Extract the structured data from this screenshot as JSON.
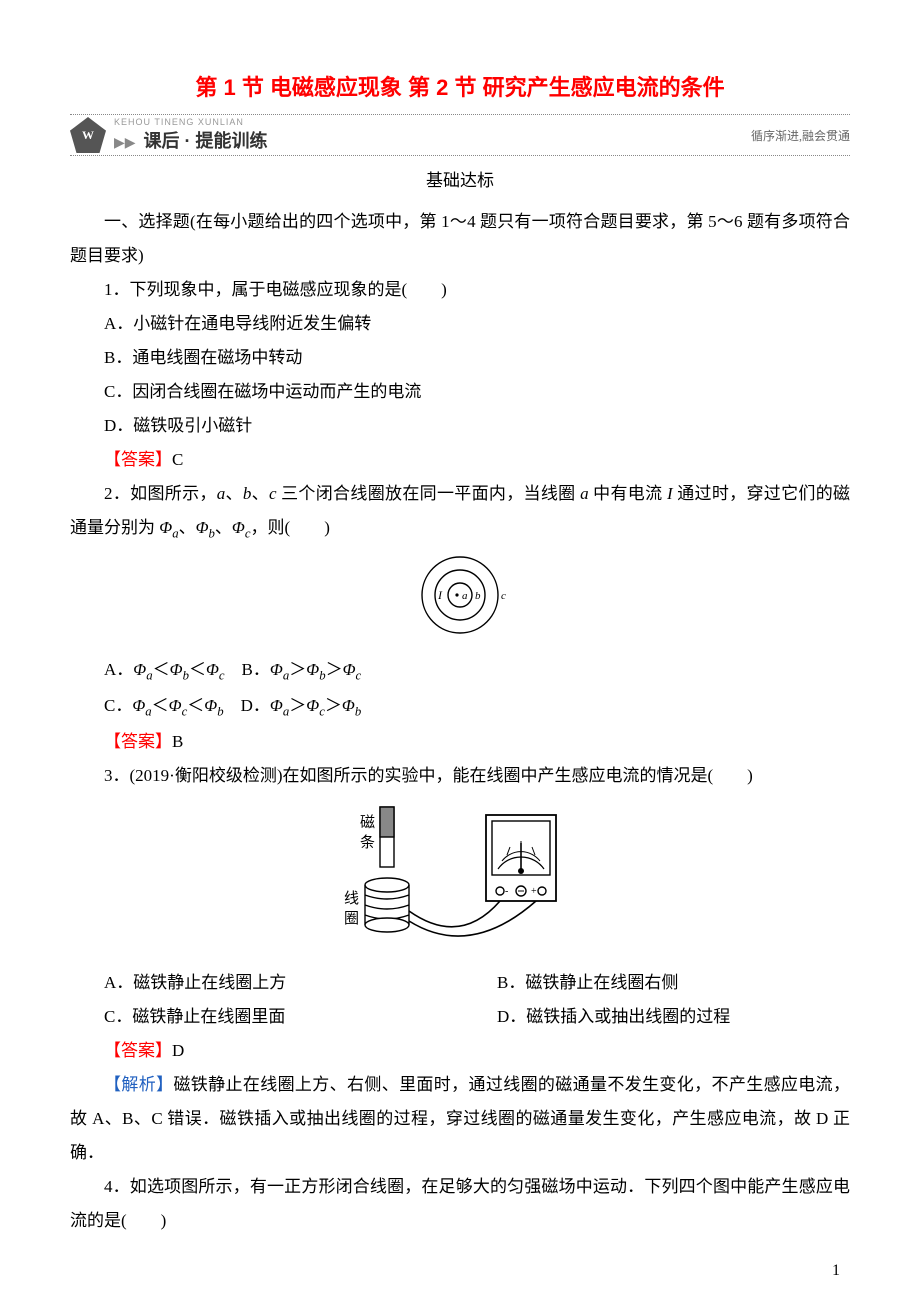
{
  "title": "第 1 节  电磁感应现象  第 2 节  研究产生感应电流的条件",
  "banner": {
    "logoText": "W",
    "pinyin": "KEHOU TINENG XUNLIAN",
    "arrows": "▶▶",
    "main": "课后 · 提能训练",
    "sub": "循序渐进,融会贯通"
  },
  "sectionHeading": "基础达标",
  "intro": "一、选择题(在每小题给出的四个选项中，第 1～4 题只有一项符合题目要求，第 5～6 题有多项符合题目要求)",
  "q1": {
    "stem": "1．下列现象中，属于电磁感应现象的是(　　)",
    "A": "A．小磁针在通电导线附近发生偏转",
    "B": "B．通电线圈在磁场中转动",
    "C": "C．因闭合线圈在磁场中运动而产生的电流",
    "D": "D．磁铁吸引小磁针",
    "answerLabel": "【答案】",
    "answer": "C"
  },
  "q2": {
    "stem_html": "2．如图所示，<span class=\"italic\">a</span>、<span class=\"italic\">b</span>、<span class=\"italic\">c</span> 三个闭合线圈放在同一平面内，当线圈 <span class=\"italic\">a</span> 中有电流 <span class=\"italic\">I</span> 通过时，穿过它们的磁通量分别为 <span class=\"italic\">Φ</span><span class=\"sub\">a</span>、<span class=\"italic\">Φ</span><span class=\"sub\">b</span>、<span class=\"italic\">Φ</span><span class=\"sub\">c</span>，则(　　)",
    "optsAB_html": "A．<span class=\"italic\">Φ</span><span class=\"sub\">a</span>＜<span class=\"italic\">Φ</span><span class=\"sub\">b</span>＜<span class=\"italic\">Φ</span><span class=\"sub\">c</span>　B．<span class=\"italic\">Φ</span><span class=\"sub\">a</span>＞<span class=\"italic\">Φ</span><span class=\"sub\">b</span>＞<span class=\"italic\">Φ</span><span class=\"sub\">c</span>",
    "optsCD_html": "C．<span class=\"italic\">Φ</span><span class=\"sub\">a</span>＜<span class=\"italic\">Φ</span><span class=\"sub\">c</span>＜<span class=\"italic\">Φ</span><span class=\"sub\">b</span>　D．<span class=\"italic\">Φ</span><span class=\"sub\">a</span>＞<span class=\"italic\">Φ</span><span class=\"sub\">c</span>＞<span class=\"italic\">Φ</span><span class=\"sub\">b</span>",
    "fig": {
      "labelI": "I",
      "labelA": "a",
      "labelB": "b",
      "labelC": "c"
    },
    "answerLabel": "【答案】",
    "answer": "B"
  },
  "q3": {
    "stem": "3．(2019·衡阳校级检测)在如图所示的实验中，能在线圈中产生感应电流的情况是(　　)",
    "figLabels": {
      "magnet1": "磁",
      "magnet2": "条",
      "coil1": "线",
      "coil2": "圈"
    },
    "A": "A．磁铁静止在线圈上方",
    "B": "B．磁铁静止在线圈右侧",
    "C": "C．磁铁静止在线圈里面",
    "D": "D．磁铁插入或抽出线圈的过程",
    "answerLabel": "【答案】",
    "answer": "D",
    "explainLabel": "【解析】",
    "explain": "磁铁静止在线圈上方、右侧、里面时，通过线圈的磁通量不发生变化，不产生感应电流，故 A、B、C 错误．磁铁插入或抽出线圈的过程，穿过线圈的磁通量发生变化，产生感应电流，故 D 正确．"
  },
  "q4": {
    "stem": "4．如选项图所示，有一正方形闭合线圈，在足够大的匀强磁场中运动．下列四个图中能产生感应电流的是(　　)"
  },
  "pageNumber": "1",
  "colors": {
    "titleColor": "#ff0000",
    "answerColor": "#ff0000",
    "explainColor": "#2060c0",
    "textColor": "#000000",
    "bgColor": "#ffffff"
  }
}
